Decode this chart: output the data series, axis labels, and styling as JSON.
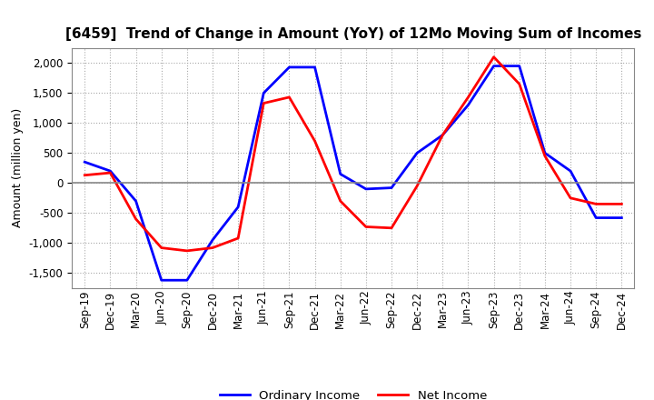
{
  "title": "[6459]  Trend of Change in Amount (YoY) of 12Mo Moving Sum of Incomes",
  "ylabel": "Amount (million yen)",
  "x_labels": [
    "Sep-19",
    "Dec-19",
    "Mar-20",
    "Jun-20",
    "Sep-20",
    "Dec-20",
    "Mar-21",
    "Jun-21",
    "Sep-21",
    "Dec-21",
    "Mar-22",
    "Jun-22",
    "Sep-22",
    "Dec-22",
    "Mar-23",
    "Jun-23",
    "Sep-23",
    "Dec-23",
    "Mar-24",
    "Jun-24",
    "Sep-24",
    "Dec-24"
  ],
  "ordinary_income": [
    350,
    200,
    -300,
    -1620,
    -1620,
    -950,
    -400,
    1500,
    1930,
    1930,
    150,
    -100,
    -80,
    500,
    800,
    1300,
    1950,
    1950,
    500,
    200,
    -580,
    -580
  ],
  "net_income": [
    130,
    170,
    -600,
    -1080,
    -1130,
    -1080,
    -920,
    1330,
    1430,
    700,
    -300,
    -730,
    -750,
    -50,
    800,
    1430,
    2100,
    1650,
    450,
    -250,
    -350,
    -350
  ],
  "ordinary_color": "#0000ff",
  "net_color": "#ff0000",
  "ylim": [
    -1750,
    2250
  ],
  "yticks": [
    -1500,
    -1000,
    -500,
    0,
    500,
    1000,
    1500,
    2000
  ],
  "bg_color": "#ffffff",
  "plot_bg_color": "#ffffff",
  "grid_color": "#aaaaaa",
  "zero_line_color": "#888888"
}
